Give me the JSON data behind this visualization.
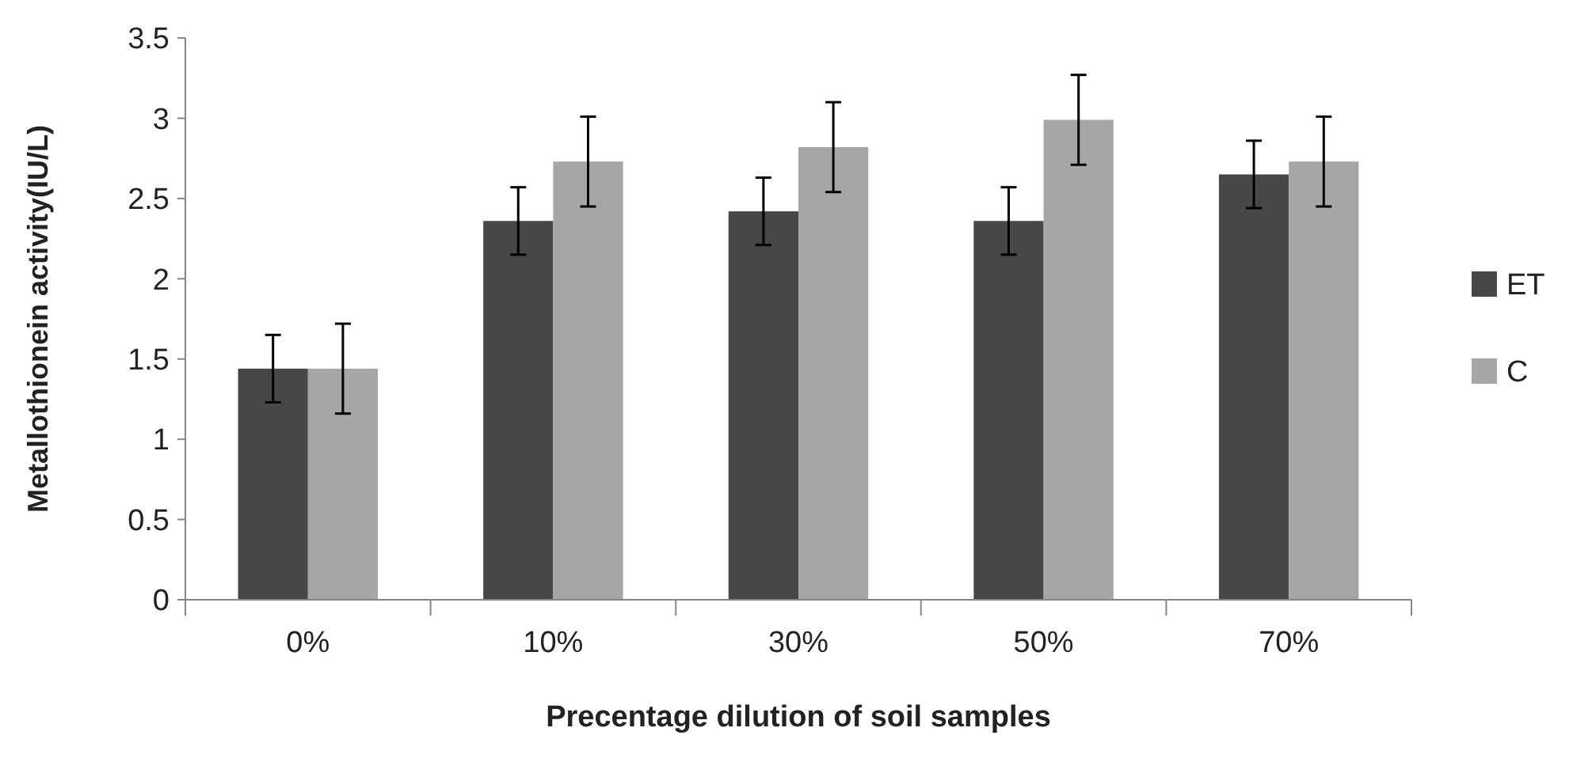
{
  "chart_data": {
    "type": "bar",
    "xlabel": "Precentage dilution of soil samples",
    "ylabel": "Metallothionein activity(IU/L)",
    "categories": [
      "0%",
      "10%",
      "30%",
      "50%",
      "70%"
    ],
    "series": [
      {
        "name": "ET",
        "color": "#474747",
        "values": [
          1.44,
          2.36,
          2.42,
          2.36,
          2.65
        ],
        "errors": [
          0.21,
          0.21,
          0.21,
          0.21,
          0.21
        ]
      },
      {
        "name": "C",
        "color": "#a6a6a6",
        "values": [
          1.44,
          2.73,
          2.82,
          2.99,
          2.73
        ],
        "errors": [
          0.28,
          0.28,
          0.28,
          0.28,
          0.28
        ]
      }
    ],
    "ylim": [
      0,
      3.5
    ],
    "yticks": [
      0,
      0.5,
      1,
      1.5,
      2,
      2.5,
      3,
      3.5
    ],
    "grid": false,
    "legend": "right"
  }
}
